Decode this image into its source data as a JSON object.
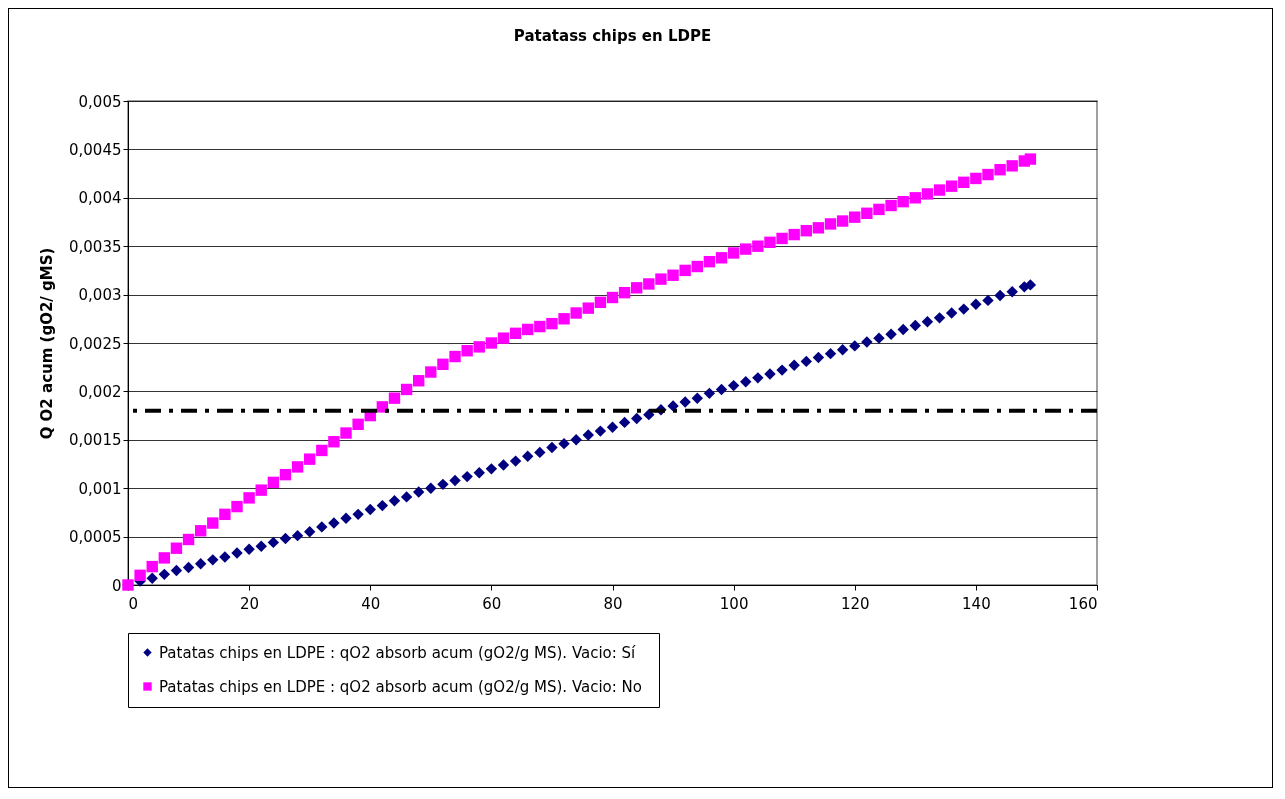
{
  "chart_data": {
    "type": "scatter",
    "title": "Patatass chips en LDPE",
    "ylabel": "Q O2 acum (gO2/ gMS)",
    "x": [
      0,
      2,
      4,
      6,
      8,
      10,
      12,
      14,
      16,
      18,
      20,
      22,
      24,
      26,
      28,
      30,
      32,
      34,
      36,
      38,
      40,
      42,
      44,
      46,
      48,
      50,
      52,
      54,
      56,
      58,
      60,
      62,
      64,
      66,
      68,
      70,
      72,
      74,
      76,
      78,
      80,
      82,
      84,
      86,
      88,
      90,
      92,
      94,
      96,
      98,
      100,
      102,
      104,
      106,
      108,
      110,
      112,
      114,
      116,
      118,
      120,
      122,
      124,
      126,
      128,
      130,
      132,
      134,
      136,
      138,
      140,
      142,
      144,
      146,
      148,
      149
    ],
    "series": [
      {
        "name": "Patatas chips en LDPE : qO2 absorb acum (gO2/g MS). Vacio:  Sí",
        "color": "#000080",
        "marker": "diamond",
        "values": [
          0,
          4e-05,
          7e-05,
          0.00011,
          0.00015,
          0.00018,
          0.00022,
          0.00026,
          0.00029,
          0.00033,
          0.00037,
          0.0004,
          0.00044,
          0.00048,
          0.00051,
          0.00055,
          0.0006,
          0.00064,
          0.00069,
          0.00073,
          0.00078,
          0.00082,
          0.00087,
          0.00091,
          0.00096,
          0.001,
          0.00104,
          0.00108,
          0.00112,
          0.00116,
          0.0012,
          0.00124,
          0.00128,
          0.00133,
          0.00137,
          0.00142,
          0.00146,
          0.0015,
          0.00155,
          0.00159,
          0.00163,
          0.00168,
          0.00172,
          0.00176,
          0.00181,
          0.00185,
          0.00189,
          0.00193,
          0.00198,
          0.00202,
          0.00206,
          0.0021,
          0.00214,
          0.00218,
          0.00222,
          0.00227,
          0.00231,
          0.00235,
          0.00239,
          0.00243,
          0.00247,
          0.00251,
          0.00255,
          0.00259,
          0.00264,
          0.00268,
          0.00272,
          0.00276,
          0.00281,
          0.00285,
          0.0029,
          0.00294,
          0.00299,
          0.00303,
          0.00308,
          0.0031
        ]
      },
      {
        "name": "Patatas chips en LDPE : qO2 absorb acum (gO2/g MS). Vacio:  No",
        "color": "#ff00ff",
        "marker": "square",
        "values": [
          0,
          0.0001,
          0.00019,
          0.00028,
          0.00038,
          0.00047,
          0.00056,
          0.00064,
          0.00073,
          0.00081,
          0.0009,
          0.00098,
          0.00106,
          0.00114,
          0.00122,
          0.0013,
          0.00139,
          0.00148,
          0.00157,
          0.00166,
          0.00175,
          0.00184,
          0.00193,
          0.00202,
          0.00211,
          0.0022,
          0.00228,
          0.00236,
          0.00242,
          0.00246,
          0.0025,
          0.00255,
          0.0026,
          0.00264,
          0.00267,
          0.0027,
          0.00275,
          0.00281,
          0.00286,
          0.00292,
          0.00297,
          0.00302,
          0.00307,
          0.00311,
          0.00316,
          0.0032,
          0.00325,
          0.00329,
          0.00334,
          0.00338,
          0.00343,
          0.00347,
          0.0035,
          0.00354,
          0.00358,
          0.00362,
          0.00366,
          0.00369,
          0.00373,
          0.00376,
          0.0038,
          0.00384,
          0.00388,
          0.00392,
          0.00396,
          0.004,
          0.00404,
          0.00408,
          0.00412,
          0.00416,
          0.0042,
          0.00424,
          0.00429,
          0.00433,
          0.00438,
          0.0044
        ]
      }
    ],
    "xlim": [
      0,
      160
    ],
    "xticks": [
      0,
      20,
      40,
      60,
      80,
      100,
      120,
      140,
      160
    ],
    "ylim": [
      0,
      0.005
    ],
    "yticks": [
      {
        "value": 0,
        "label": "0"
      },
      {
        "value": 0.0005,
        "label": "0,0005"
      },
      {
        "value": 0.001,
        "label": "0,001"
      },
      {
        "value": 0.0015,
        "label": "0,0015"
      },
      {
        "value": 0.002,
        "label": "0,002"
      },
      {
        "value": 0.0025,
        "label": "0,0025"
      },
      {
        "value": 0.003,
        "label": "0,003"
      },
      {
        "value": 0.0035,
        "label": "0,0035"
      },
      {
        "value": 0.004,
        "label": "0,004"
      },
      {
        "value": 0.0045,
        "label": "0,0045"
      },
      {
        "value": 0.005,
        "label": "0,005"
      }
    ],
    "ref_lines": [
      {
        "axis": "y",
        "value": 0.0018,
        "color": "#000000",
        "line_style": "dashed"
      }
    ],
    "grid": "y",
    "legend": "bottom"
  }
}
